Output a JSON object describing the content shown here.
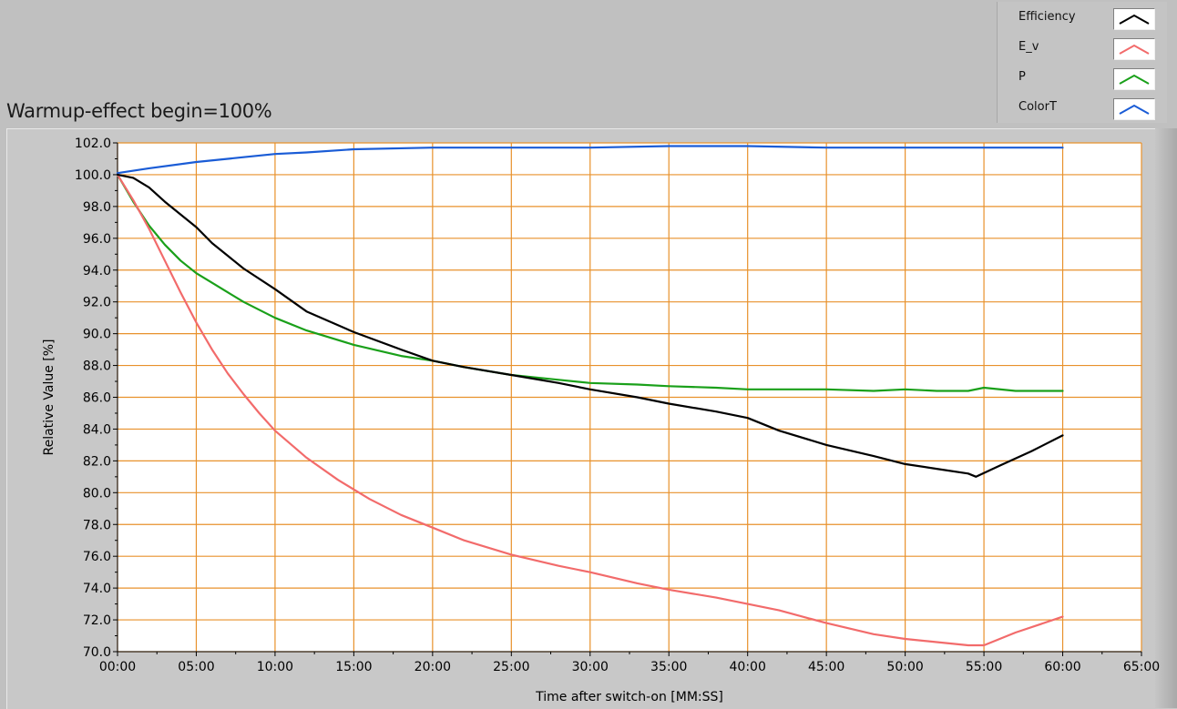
{
  "title": "Warmup-effect begin=100%",
  "legend": [
    {
      "label": "Efficiency",
      "color": "#000000"
    },
    {
      "label": "E_v",
      "color": "#f26b6b"
    },
    {
      "label": "P",
      "color": "#1aa01a"
    },
    {
      "label": "ColorT",
      "color": "#1a5cd6"
    }
  ],
  "colors": {
    "plot_bg": "#ffffff",
    "grid": "#e8912b",
    "axis_text": "#000000"
  },
  "chart_data": {
    "type": "line",
    "xlabel": "Time after switch-on [MM:SS]",
    "ylabel": "Relative Value [%]",
    "xlim": [
      0,
      65
    ],
    "ylim": [
      70,
      102
    ],
    "x_ticks": [
      0,
      5,
      10,
      15,
      20,
      25,
      30,
      35,
      40,
      45,
      50,
      55,
      60,
      65
    ],
    "x_tick_labels": [
      "00:00",
      "05:00",
      "10:00",
      "15:00",
      "20:00",
      "25:00",
      "30:00",
      "35:00",
      "40:00",
      "45:00",
      "50:00",
      "55:00",
      "60:00",
      "65:00"
    ],
    "y_ticks": [
      70,
      72,
      74,
      76,
      78,
      80,
      82,
      84,
      86,
      88,
      90,
      92,
      94,
      96,
      98,
      100,
      102
    ],
    "y_tick_labels": [
      "70.0",
      "72.0",
      "74.0",
      "76.0",
      "78.0",
      "80.0",
      "82.0",
      "84.0",
      "86.0",
      "88.0",
      "90.0",
      "92.0",
      "94.0",
      "96.0",
      "98.0",
      "100.0",
      "102.0"
    ],
    "grid": true,
    "legend_position": "top-right",
    "series": [
      {
        "name": "Efficiency",
        "color": "#000000",
        "x": [
          0,
          1,
          2,
          3,
          4,
          5,
          6,
          7,
          8,
          10,
          12,
          15,
          18,
          20,
          22,
          25,
          28,
          30,
          33,
          35,
          38,
          40,
          42,
          45,
          48,
          50,
          52,
          54,
          54.5,
          56,
          58,
          60
        ],
        "y": [
          100.0,
          99.8,
          99.2,
          98.3,
          97.5,
          96.7,
          95.7,
          94.9,
          94.1,
          92.8,
          91.4,
          90.1,
          89.0,
          88.3,
          87.9,
          87.4,
          86.9,
          86.5,
          86.0,
          85.6,
          85.1,
          84.7,
          83.9,
          83.0,
          82.3,
          81.8,
          81.5,
          81.2,
          81.0,
          81.7,
          82.6,
          83.6
        ]
      },
      {
        "name": "E_v",
        "color": "#f26b6b",
        "x": [
          0,
          1,
          2,
          3,
          4,
          5,
          6,
          7,
          8,
          9,
          10,
          12,
          14,
          16,
          18,
          20,
          22,
          25,
          28,
          30,
          33,
          35,
          38,
          40,
          42,
          45,
          48,
          50,
          52,
          54,
          55,
          57,
          60
        ],
        "y": [
          100.0,
          98.4,
          96.6,
          94.6,
          92.6,
          90.7,
          89.0,
          87.5,
          86.2,
          85.0,
          83.9,
          82.2,
          80.8,
          79.6,
          78.6,
          77.8,
          77.0,
          76.1,
          75.4,
          75.0,
          74.3,
          73.9,
          73.4,
          73.0,
          72.6,
          71.8,
          71.1,
          70.8,
          70.6,
          70.4,
          70.4,
          71.2,
          72.2
        ]
      },
      {
        "name": "P",
        "color": "#1aa01a",
        "x": [
          0,
          1,
          2,
          3,
          4,
          5,
          6,
          7,
          8,
          10,
          12,
          15,
          18,
          20,
          22,
          25,
          28,
          30,
          33,
          35,
          38,
          40,
          42,
          45,
          48,
          50,
          52,
          54,
          55,
          57,
          60
        ],
        "y": [
          100.0,
          98.3,
          96.8,
          95.6,
          94.6,
          93.8,
          93.2,
          92.6,
          92.0,
          91.0,
          90.2,
          89.3,
          88.6,
          88.3,
          87.9,
          87.4,
          87.1,
          86.9,
          86.8,
          86.7,
          86.6,
          86.5,
          86.5,
          86.5,
          86.4,
          86.5,
          86.4,
          86.4,
          86.6,
          86.4,
          86.4
        ]
      },
      {
        "name": "ColorT",
        "color": "#1a5cd6",
        "x": [
          0,
          2,
          5,
          8,
          10,
          12,
          15,
          20,
          25,
          30,
          35,
          40,
          45,
          50,
          55,
          60
        ],
        "y": [
          100.1,
          100.4,
          100.8,
          101.1,
          101.3,
          101.4,
          101.6,
          101.7,
          101.7,
          101.7,
          101.8,
          101.8,
          101.7,
          101.7,
          101.7,
          101.7
        ]
      }
    ]
  }
}
